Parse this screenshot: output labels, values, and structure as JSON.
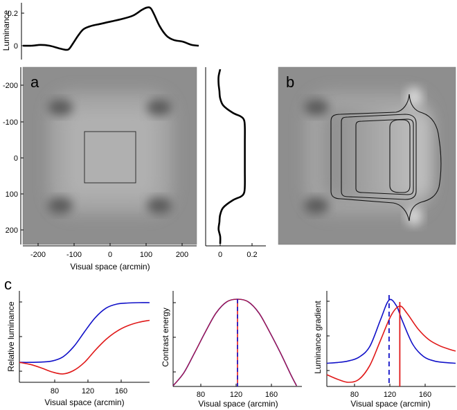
{
  "figure": {
    "panel_labels": {
      "a": "a",
      "b": "b",
      "c": "c"
    },
    "colors": {
      "blue": "#1010c8",
      "red": "#e01818",
      "black": "#000000"
    }
  },
  "chart_data": [
    {
      "id": "top-luminance-profile",
      "type": "line",
      "xlabel": "",
      "ylabel": "Luminance",
      "ylim": [
        -0.05,
        0.27
      ],
      "yticks": [
        "0",
        "0.2"
      ],
      "series": [
        {
          "values_x": [
            -250,
            -225,
            -200,
            -175,
            -150,
            -130,
            -120,
            -110,
            -95,
            -80,
            -60,
            -30,
            0,
            30,
            60,
            85,
            100,
            110,
            120,
            135,
            155,
            175,
            200,
            225,
            245
          ],
          "values_y": [
            0.0,
            0.0,
            0.005,
            0.0,
            -0.015,
            -0.025,
            -0.02,
            0.01,
            0.06,
            0.1,
            0.12,
            0.135,
            0.15,
            0.165,
            0.185,
            0.22,
            0.235,
            0.23,
            0.19,
            0.12,
            0.06,
            0.035,
            0.025,
            0.005,
            0.0
          ]
        }
      ]
    },
    {
      "id": "panel-a-image",
      "type": "heatmap",
      "xlabel": "Visual space (arcmin)",
      "ylabel": "",
      "xticks": [
        "-200",
        "-100",
        "0",
        "100",
        "200"
      ],
      "yticks": [
        "-200",
        "-100",
        "0",
        "100",
        "200"
      ],
      "xlim": [
        -240,
        240
      ],
      "ylim": [
        -240,
        240
      ]
    },
    {
      "id": "side-luminance-profile",
      "type": "line",
      "xticks": [
        "0",
        "0.2"
      ],
      "series": [
        {
          "values_y": [
            -240,
            -220,
            -200,
            -180,
            -160,
            -140,
            -120,
            -110,
            -100,
            -80,
            -40,
            0,
            40,
            80,
            100,
            110,
            120,
            140,
            160,
            180,
            200,
            220,
            240
          ],
          "values_x": [
            0.0,
            -0.01,
            -0.01,
            -0.005,
            0.0,
            0.02,
            0.08,
            0.13,
            0.15,
            0.155,
            0.155,
            0.155,
            0.155,
            0.155,
            0.15,
            0.13,
            0.08,
            0.02,
            0.0,
            -0.005,
            -0.01,
            0.0,
            0.0
          ]
        }
      ]
    },
    {
      "id": "panel-c1",
      "type": "line",
      "xlabel": "Visual space (arcmin)",
      "ylabel": "Relative luminance",
      "xticks": [
        "80",
        "120",
        "160"
      ],
      "series": [
        {
          "name": "",
          "color": "blue",
          "x": [
            60,
            70,
            80,
            90,
            100,
            110,
            120,
            130,
            140,
            150,
            160,
            170,
            180
          ],
          "y": [
            0.12,
            0.12,
            0.125,
            0.14,
            0.2,
            0.35,
            0.57,
            0.78,
            0.92,
            0.98,
            0.995,
            1.0,
            1.0
          ]
        },
        {
          "name": "",
          "color": "red",
          "x": [
            60,
            70,
            80,
            90,
            100,
            110,
            120,
            130,
            140,
            150,
            160,
            170,
            180
          ],
          "y": [
            0.12,
            0.09,
            0.04,
            -0.02,
            -0.05,
            0.0,
            0.12,
            0.3,
            0.46,
            0.58,
            0.66,
            0.71,
            0.74
          ]
        }
      ]
    },
    {
      "id": "panel-c2",
      "type": "line",
      "xlabel": "Visual space (arcmin)",
      "ylabel": "Contrast energy",
      "xticks": [
        "80",
        "120",
        "160"
      ],
      "vlines": [
        {
          "x": 120,
          "color": "blue",
          "dashed": true
        },
        {
          "x": 120,
          "color": "red",
          "dashed": true
        }
      ],
      "series": [
        {
          "name": "",
          "color": "blue",
          "x": [
            60,
            70,
            80,
            90,
            100,
            110,
            120,
            130,
            140,
            150,
            160,
            170,
            175
          ],
          "y": [
            0.0,
            0.15,
            0.38,
            0.62,
            0.84,
            0.97,
            1.0,
            0.97,
            0.84,
            0.62,
            0.38,
            0.12,
            0.0
          ]
        },
        {
          "name": "",
          "color": "red",
          "x": [
            60,
            70,
            80,
            90,
            100,
            110,
            120,
            130,
            140,
            150,
            160,
            170,
            175
          ],
          "y": [
            0.0,
            0.15,
            0.38,
            0.62,
            0.84,
            0.97,
            1.0,
            0.97,
            0.84,
            0.62,
            0.38,
            0.12,
            0.0
          ]
        }
      ]
    },
    {
      "id": "panel-c3",
      "type": "line",
      "xlabel": "Visual space (arcmin)",
      "ylabel": "Luminance gradient",
      "xticks": [
        "80",
        "120",
        "160"
      ],
      "vlines": [
        {
          "x": 118,
          "color": "blue",
          "dashed": true
        },
        {
          "x": 128,
          "color": "red",
          "dashed": false
        }
      ],
      "series": [
        {
          "name": "",
          "color": "blue",
          "x": [
            60,
            70,
            80,
            90,
            100,
            110,
            118,
            125,
            130,
            140,
            150,
            160,
            170,
            180
          ],
          "y": [
            0.05,
            0.06,
            0.08,
            0.13,
            0.27,
            0.62,
            0.88,
            0.8,
            0.62,
            0.3,
            0.14,
            0.08,
            0.06,
            0.05
          ]
        },
        {
          "name": "",
          "color": "red",
          "x": [
            60,
            70,
            80,
            90,
            100,
            110,
            120,
            128,
            135,
            145,
            155,
            165,
            175,
            180
          ],
          "y": [
            -0.1,
            -0.16,
            -0.2,
            -0.16,
            0.02,
            0.35,
            0.68,
            0.8,
            0.7,
            0.5,
            0.36,
            0.28,
            0.23,
            0.21
          ]
        }
      ]
    }
  ]
}
